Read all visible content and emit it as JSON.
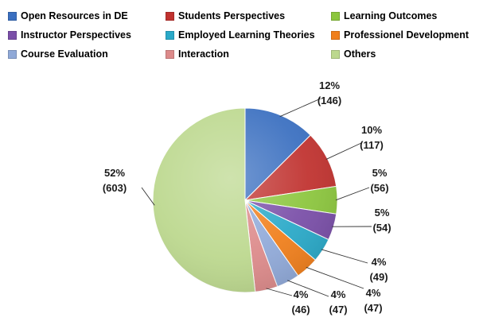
{
  "chart_data": {
    "type": "pie",
    "title": "",
    "legend_position": "top",
    "slices": [
      {
        "name": "Open Resources in DE",
        "value": 146,
        "percent_label": "12%",
        "count_label": "(146)",
        "color": "#3a6fc0"
      },
      {
        "name": "Students Perspectives",
        "value": 117,
        "percent_label": "10%",
        "count_label": "(117)",
        "color": "#c0322f"
      },
      {
        "name": "Learning Outcomes",
        "value": 56,
        "percent_label": "5%",
        "count_label": "(56)",
        "color": "#8cc63e"
      },
      {
        "name": "Instructor Perspectives",
        "value": 54,
        "percent_label": "5%",
        "count_label": "(54)",
        "color": "#7a4fa8"
      },
      {
        "name": "Employed Learning Theories",
        "value": 49,
        "percent_label": "4%",
        "count_label": "(49)",
        "color": "#2aa9c8"
      },
      {
        "name": "Professionel Development",
        "value": 47,
        "percent_label": "4%",
        "count_label": "(47)",
        "color": "#f07f1c"
      },
      {
        "name": "Course Evaluation",
        "value": 47,
        "percent_label": "4%",
        "count_label": "(47)",
        "color": "#90a9d8"
      },
      {
        "name": "Interaction",
        "value": 46,
        "percent_label": "4%",
        "count_label": "(46)",
        "color": "#dc8a8a"
      },
      {
        "name": "Others",
        "value": 603,
        "percent_label": "52%",
        "count_label": "(603)",
        "color": "#bcd88e"
      }
    ]
  }
}
